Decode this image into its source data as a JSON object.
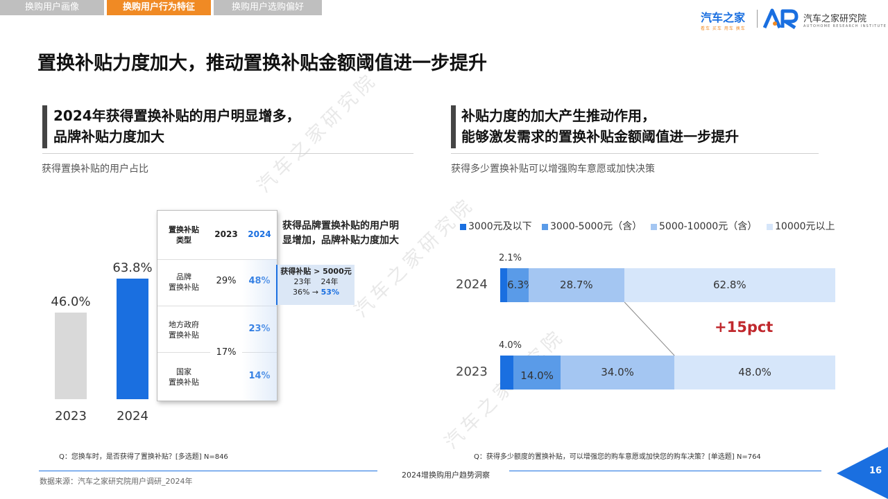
{
  "tabs": [
    {
      "label": "换购用户画像",
      "active": false
    },
    {
      "label": "换购用户行为特征",
      "active": true
    },
    {
      "label": "换购用户选购偏好",
      "active": false
    }
  ],
  "logo": {
    "brand": "汽车之家",
    "brand_sub": "看车 买车 用车 换车",
    "research": "汽车之家研究院",
    "research_sub": "AUTOHOME RESEARCH INSTITUTE"
  },
  "main_title": "置换补贴力度加大，推动置换补贴金额阈值进一步提升",
  "left": {
    "section_title_line1": "2024年获得置换补贴的用户明显增多，",
    "section_title_line2": "品牌补贴力度加大",
    "subtitle": "获得置换补贴的用户占比",
    "table": {
      "header_type": "置换补贴\n类型",
      "header_2023": "2023",
      "header_2024": "2024",
      "rows": [
        {
          "type": "品牌\n置换补贴",
          "v2023": "29%",
          "v2024": "48%"
        },
        {
          "type": "地方政府\n置换补贴",
          "v2023": "",
          "v2024": "23%"
        },
        {
          "type": "国家\n置换补贴",
          "v2023": "",
          "v2024": "14%"
        }
      ],
      "merged_2023": "17%"
    },
    "callout_title": "获得补贴 > 5000元",
    "callout_years": "23年    24年",
    "callout_from": "36% →",
    "callout_to": "53%",
    "note_line1": "获得品牌置换补贴的用户明",
    "note_line2": "显增加，品牌补贴力度加大",
    "question": "Q：您换车时，是否获得了置换补贴？[多选题] N=846",
    "colors": {
      "bar_2023": "#d9d9d9",
      "bar_2024": "#1a6fe0"
    }
  },
  "right": {
    "section_title_line1": "补贴力度的加大产生推动作用，",
    "section_title_line2": "能够激发需求的置换补贴金额阈值进一步提升",
    "subtitle": "获得多少置换补贴可以增强购车意愿或加快决策",
    "delta_label": "+15pct",
    "question": "Q：获得多少额度的置换补贴，可以增强您的购车意愿或加快您的购车决策？[单选题] N=764"
  },
  "chart_data": [
    {
      "type": "bar",
      "categories": [
        "2023",
        "2024"
      ],
      "values": [
        46.0,
        63.8
      ],
      "value_labels": [
        "46.0%",
        "63.8%"
      ],
      "ylim": [
        0,
        100
      ],
      "colors": [
        "#d9d9d9",
        "#1a6fe0"
      ]
    },
    {
      "type": "bar",
      "stacked": true,
      "orientation": "horizontal",
      "categories": [
        "2024",
        "2023"
      ],
      "series": [
        {
          "name": "3000元及以下",
          "color": "#1a6fe0",
          "values": [
            2.1,
            4.0
          ],
          "labels": [
            "2.1%",
            "4.0%"
          ]
        },
        {
          "name": "3000-5000元（含）",
          "color": "#5a9be8",
          "values": [
            6.3,
            14.0
          ],
          "labels": [
            "6.3%",
            "14.0%"
          ]
        },
        {
          "name": "5000-10000元（含）",
          "color": "#a4c6f2",
          "values": [
            28.7,
            34.0
          ],
          "labels": [
            "28.7%",
            "34.0%"
          ]
        },
        {
          "name": "10000元以上",
          "color": "#d6e6fa",
          "values": [
            62.8,
            48.0
          ],
          "labels": [
            "62.8%",
            "48.0%"
          ]
        }
      ],
      "legend": "top"
    }
  ],
  "footer": {
    "source": "数据来源：汽车之家研究院用户调研_2024年",
    "center": "2024增换购用户趋势洞察",
    "page": "16"
  },
  "watermark": "汽车之家研究院"
}
